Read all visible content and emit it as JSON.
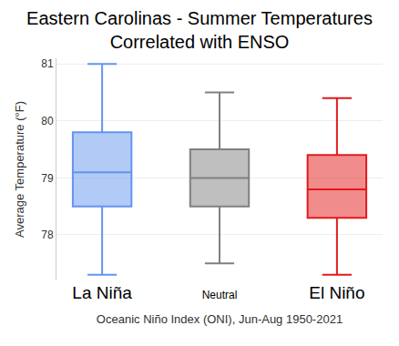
{
  "chart_data": {
    "type": "box",
    "title": "Eastern Carolinas - Summer Temperatures\nCorrelated with ENSO",
    "x_label": "Oceanic Niño Index (ONI), Jun-Aug 1950-2021",
    "y_label": "Average Temperature (°F)",
    "categories": [
      "La Niña",
      "Neutral",
      "El Niño"
    ],
    "colors": [
      "#6495ED",
      "#808080",
      "#E31A1C"
    ],
    "min": [
      77.3,
      77.5,
      77.3
    ],
    "q1": [
      78.5,
      78.5,
      78.3
    ],
    "median": [
      79.1,
      79.0,
      78.8
    ],
    "q3": [
      79.8,
      79.5,
      79.4
    ],
    "max": [
      81.0,
      80.5,
      80.4
    ],
    "ylim": [
      77.2,
      81.1
    ],
    "yticks": [
      78,
      79,
      80,
      81
    ],
    "grid": true
  }
}
